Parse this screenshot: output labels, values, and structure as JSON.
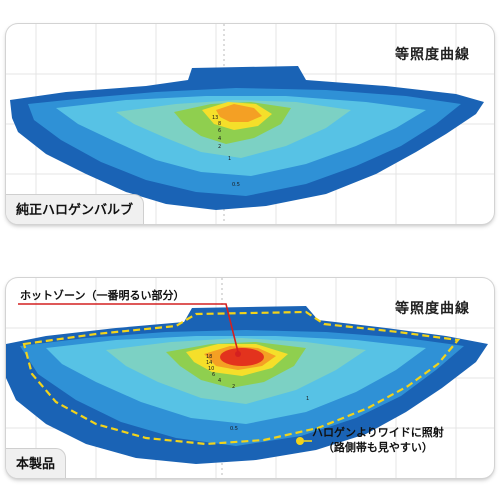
{
  "panels": [
    {
      "title": "等照度曲線",
      "label": "純正ハロゲンバルブ",
      "contour_labels": [
        "13",
        "8",
        "6",
        "4",
        "2",
        "1",
        "0.5"
      ]
    },
    {
      "title": "等照度曲線",
      "label": "本製品",
      "contour_labels": [
        "18",
        "14",
        "10",
        "6",
        "4",
        "2",
        "1",
        "0.5"
      ]
    }
  ],
  "callouts": {
    "hot_zone": "ホットゾーン（一番明るい部分）",
    "wide_line1": "ハロゲンよりワイドに照射",
    "wide_line2": "（路側帯も見やすい）"
  },
  "colors": {
    "outer": "#1a63b5",
    "mid": "#2f91d6",
    "light_blue": "#57c2e5",
    "teal": "#7cd1c4",
    "green": "#8fcf4f",
    "yellow": "#f5df2a",
    "orange": "#f4a024",
    "red": "#e3331d",
    "dashed_outline": "#f2d31b",
    "pointer_line": "#d42020"
  }
}
